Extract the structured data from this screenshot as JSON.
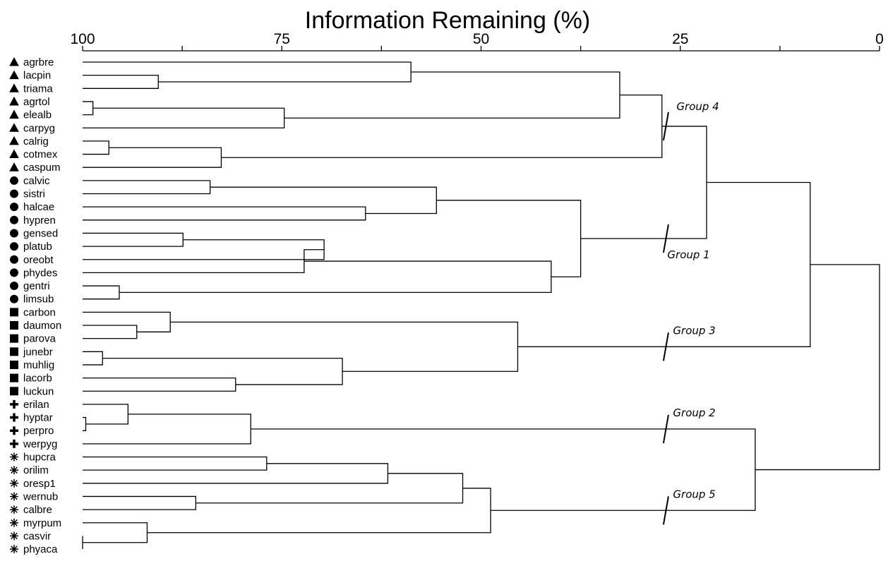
{
  "title": "Information Remaining (%)",
  "axis": {
    "ticks": [
      "100",
      "75",
      "50",
      "25",
      "0"
    ],
    "tick_values": [
      100,
      87.5,
      75,
      62.5,
      50,
      37.5,
      25,
      12.5,
      0
    ],
    "range": [
      100,
      0
    ]
  },
  "leaves": [
    {
      "name": "agrbre",
      "marker": "triangle"
    },
    {
      "name": "lacpin",
      "marker": "triangle"
    },
    {
      "name": "triama",
      "marker": "triangle"
    },
    {
      "name": "agrtol",
      "marker": "triangle"
    },
    {
      "name": "elealb",
      "marker": "triangle"
    },
    {
      "name": "carpyg",
      "marker": "triangle"
    },
    {
      "name": "calrig",
      "marker": "triangle"
    },
    {
      "name": "cotmex",
      "marker": "triangle"
    },
    {
      "name": "caspum",
      "marker": "triangle"
    },
    {
      "name": "calvic",
      "marker": "circle"
    },
    {
      "name": "sistri",
      "marker": "circle"
    },
    {
      "name": "halcae",
      "marker": "circle"
    },
    {
      "name": "hypren",
      "marker": "circle"
    },
    {
      "name": "gensed",
      "marker": "circle"
    },
    {
      "name": "platub",
      "marker": "circle"
    },
    {
      "name": "oreobt",
      "marker": "circle"
    },
    {
      "name": "phydes",
      "marker": "circle"
    },
    {
      "name": "gentri",
      "marker": "circle"
    },
    {
      "name": "limsub",
      "marker": "circle"
    },
    {
      "name": "carbon",
      "marker": "square"
    },
    {
      "name": "daumon",
      "marker": "square"
    },
    {
      "name": "parova",
      "marker": "square"
    },
    {
      "name": "junebr",
      "marker": "square"
    },
    {
      "name": "muhlig",
      "marker": "square"
    },
    {
      "name": "lacorb",
      "marker": "square"
    },
    {
      "name": "luckun",
      "marker": "square"
    },
    {
      "name": "erilan",
      "marker": "cross"
    },
    {
      "name": "hyptar",
      "marker": "cross"
    },
    {
      "name": "perpro",
      "marker": "cross"
    },
    {
      "name": "werpyg",
      "marker": "cross"
    },
    {
      "name": "hupcra",
      "marker": "asterisk"
    },
    {
      "name": "orilim",
      "marker": "asterisk"
    },
    {
      "name": "oresp1",
      "marker": "asterisk"
    },
    {
      "name": "wernub",
      "marker": "asterisk"
    },
    {
      "name": "calbre",
      "marker": "asterisk"
    },
    {
      "name": "myrpum",
      "marker": "asterisk"
    },
    {
      "name": "casvir",
      "marker": "asterisk"
    },
    {
      "name": "phyaca",
      "marker": "asterisk"
    }
  ],
  "merges": [
    {
      "id": "n1",
      "a": 1,
      "b": 2,
      "height": 90.5
    },
    {
      "id": "n2",
      "a": 0,
      "b": "n1",
      "height": 58.8
    },
    {
      "id": "n3",
      "a": 3,
      "b": 4,
      "height": 98.7
    },
    {
      "id": "n4",
      "a": "n3",
      "b": 5,
      "height": 74.7
    },
    {
      "id": "n5",
      "a": "n2",
      "b": "n4",
      "height": 32.6
    },
    {
      "id": "n6",
      "a": 6,
      "b": 7,
      "height": 96.7
    },
    {
      "id": "n7",
      "a": "n6",
      "b": 8,
      "height": 82.6
    },
    {
      "id": "n8",
      "a": "n5",
      "b": "n7",
      "height": 27.3
    },
    {
      "id": "n9",
      "a": 9,
      "b": 10,
      "height": 84.0
    },
    {
      "id": "n10",
      "a": 11,
      "b": 12,
      "height": 64.5
    },
    {
      "id": "n11",
      "a": "n9",
      "b": "n10",
      "height": 55.6
    },
    {
      "id": "n12",
      "a": 13,
      "b": 14,
      "height": 87.4
    },
    {
      "id": "n13",
      "a": "n12",
      "b": 15,
      "height": 69.7
    },
    {
      "id": "n14",
      "a": "n13",
      "b": 16,
      "height": 72.2
    },
    {
      "id": "n15",
      "a": 17,
      "b": 18,
      "height": 95.4
    },
    {
      "id": "n16",
      "a": "n14",
      "b": "n15",
      "height": 41.2
    },
    {
      "id": "n17",
      "a": "n11",
      "b": "n16",
      "height": 37.5
    },
    {
      "id": "n18",
      "a": "n8",
      "b": "n17",
      "height": 21.7
    },
    {
      "id": "n19",
      "a": 20,
      "b": 21,
      "height": 93.2
    },
    {
      "id": "n20",
      "a": 19,
      "b": "n19",
      "height": 89.0
    },
    {
      "id": "n21",
      "a": 22,
      "b": 23,
      "height": 97.5
    },
    {
      "id": "n22",
      "a": 24,
      "b": 25,
      "height": 80.8
    },
    {
      "id": "n23",
      "a": "n21",
      "b": "n22",
      "height": 67.4
    },
    {
      "id": "n24",
      "a": "n20",
      "b": "n23",
      "height": 45.4
    },
    {
      "id": "n25",
      "a": 27,
      "b": 28,
      "height": 99.6
    },
    {
      "id": "n26",
      "a": 26,
      "b": "n25",
      "height": 94.3
    },
    {
      "id": "n27",
      "a": "n26",
      "b": 29,
      "height": 78.9
    },
    {
      "id": "n28",
      "a": 30,
      "b": 31,
      "height": 76.9
    },
    {
      "id": "n29",
      "a": "n28",
      "b": 32,
      "height": 61.7
    },
    {
      "id": "n30",
      "a": 33,
      "b": 34,
      "height": 85.8
    },
    {
      "id": "n31",
      "a": "n29",
      "b": "n30",
      "height": 52.3
    },
    {
      "id": "n32",
      "a": 36,
      "b": 37,
      "height": 100.0
    },
    {
      "id": "n33",
      "a": 35,
      "b": "n32",
      "height": 91.9
    },
    {
      "id": "n34",
      "a": "n31",
      "b": "n33",
      "height": 48.8
    },
    {
      "id": "n35",
      "a": "n27",
      "b": "n34",
      "height": 15.6
    },
    {
      "id": "n36",
      "a": "n24",
      "b": "n18",
      "height": 8.7
    },
    {
      "id": "n37",
      "a": "n36",
      "b": "n35",
      "height": 0.0
    }
  ],
  "groups": [
    {
      "label": "Group 4",
      "cut_value": 26.8,
      "between": [
        "n8",
        "n17"
      ],
      "side": "upper"
    },
    {
      "label": "Group 1",
      "cut_value": 26.8,
      "between": [
        "n8",
        "n17"
      ],
      "side": "lower"
    },
    {
      "label": "Group 3",
      "cut_value": 26.8,
      "node": "n24"
    },
    {
      "label": "Group 2",
      "cut_value": 26.8,
      "node": "n27"
    },
    {
      "label": "Group 5",
      "cut_value": 26.8,
      "node": "n34"
    }
  ]
}
